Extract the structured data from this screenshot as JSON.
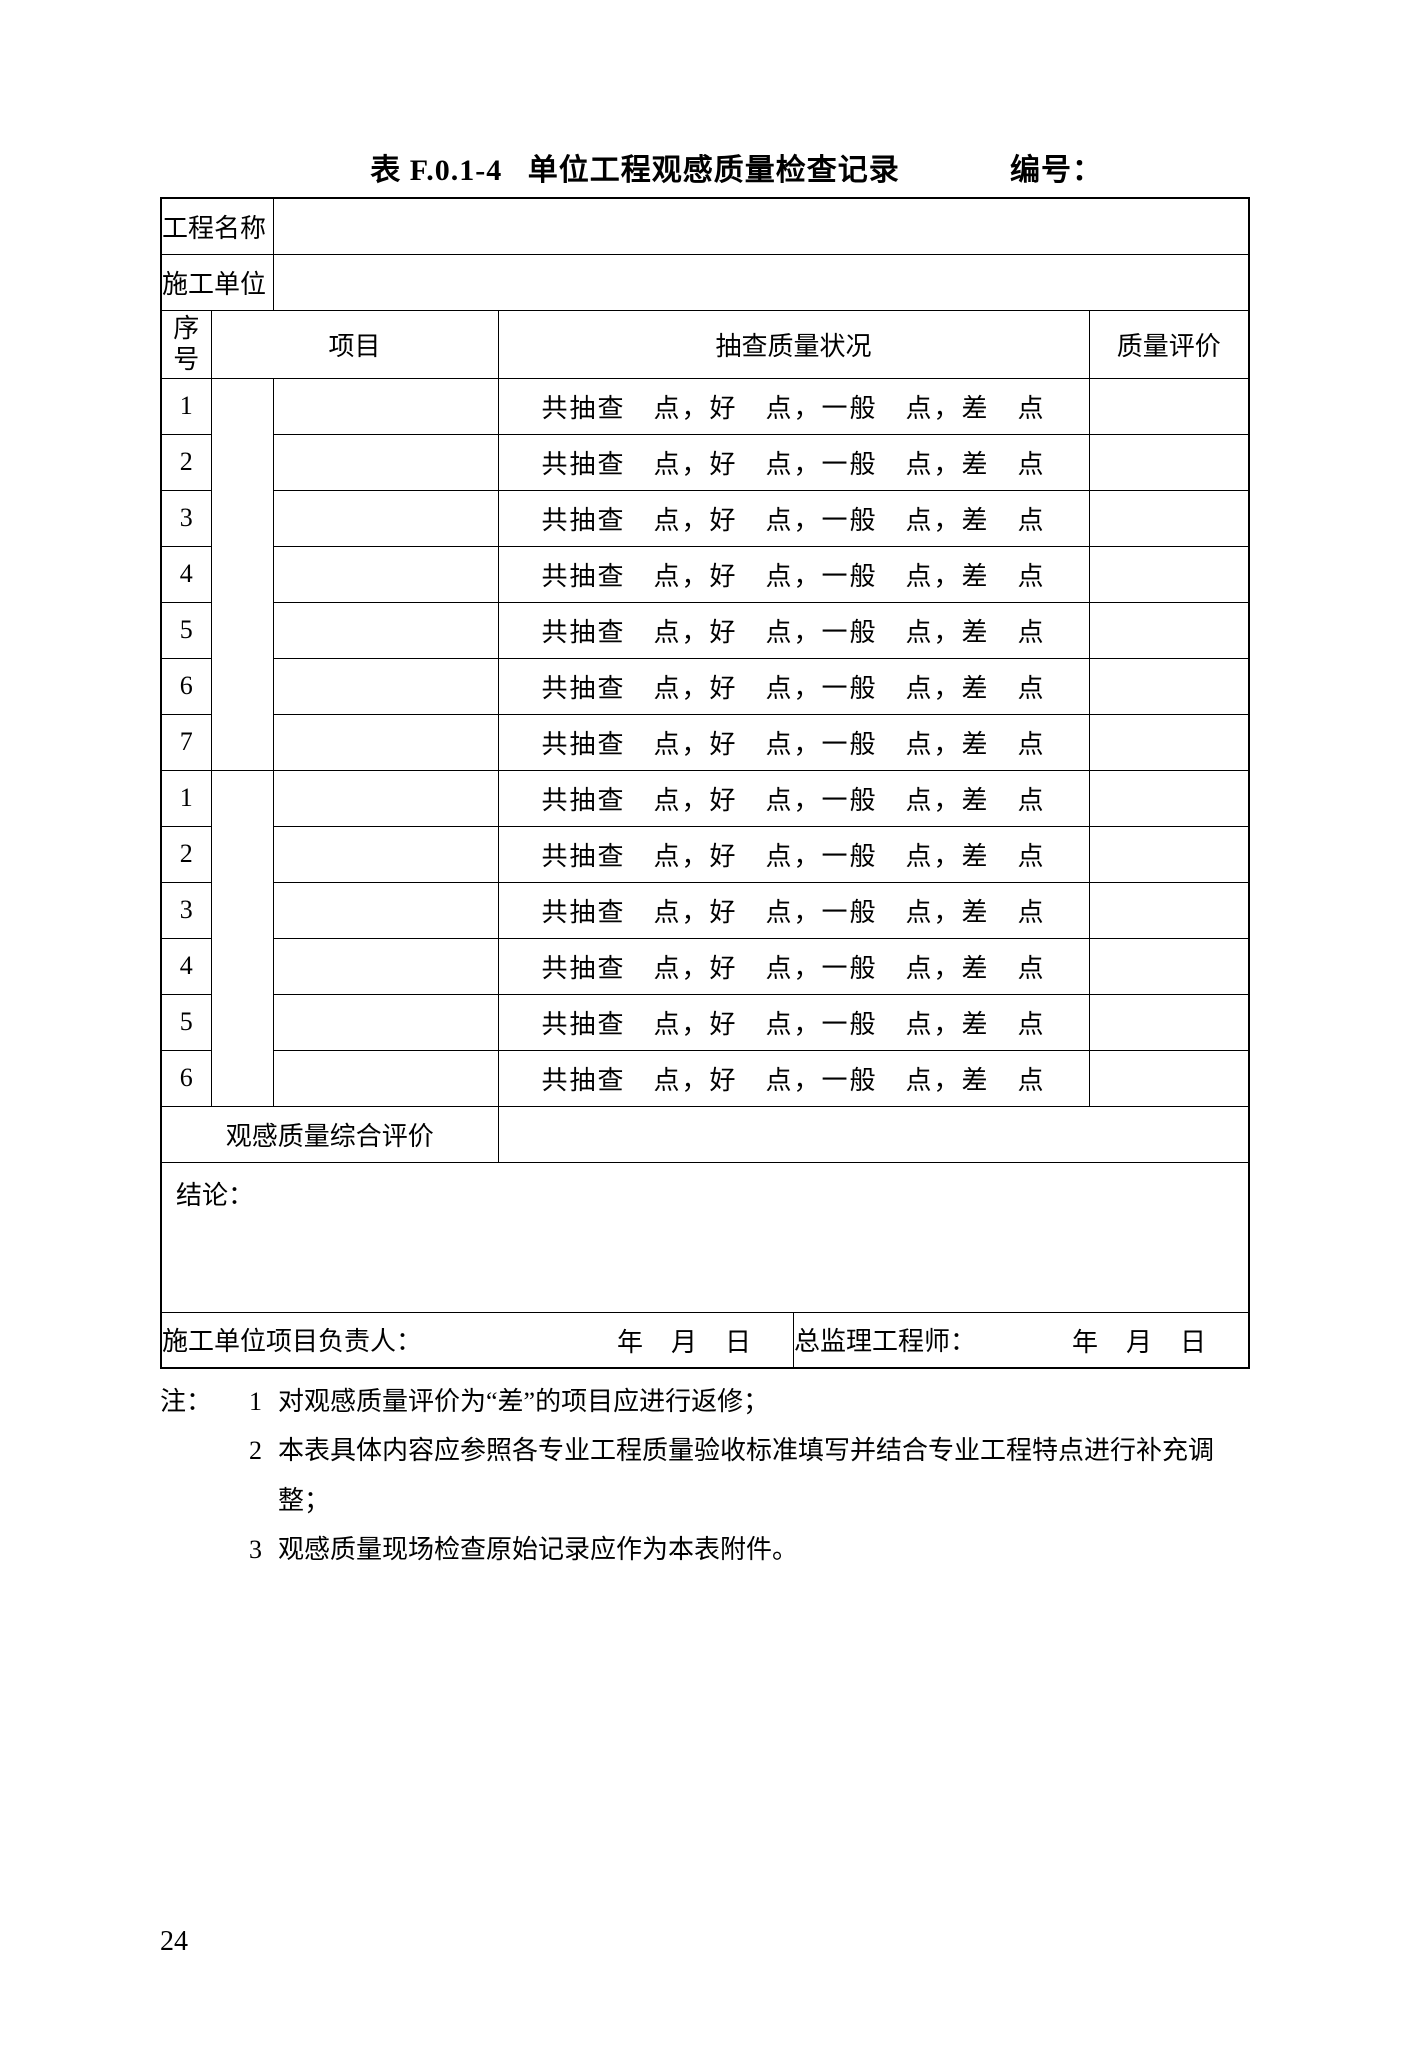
{
  "title": {
    "table_no": "表 F.0.1-4",
    "name": "单位工程观感质量检查记录",
    "numbering_label": "编号："
  },
  "header_rows": {
    "project_name_label": "工程名称",
    "contractor_label": "施工单位",
    "seq_label": "序号",
    "item_label": "项目",
    "sample_label": "抽查质量状况",
    "eval_label": "质量评价"
  },
  "sample_text": "共抽查　点，好　点，一般　点，差　点",
  "rows": [
    {
      "seq": "1"
    },
    {
      "seq": "2"
    },
    {
      "seq": "3"
    },
    {
      "seq": "4"
    },
    {
      "seq": "5"
    },
    {
      "seq": "6"
    },
    {
      "seq": "7"
    },
    {
      "seq": "1"
    },
    {
      "seq": "2"
    },
    {
      "seq": "3"
    },
    {
      "seq": "4"
    },
    {
      "seq": "5"
    },
    {
      "seq": "6"
    }
  ],
  "summary_label": "观感质量综合评价",
  "conclusion_label": "结论：",
  "sign": {
    "contractor_lead": "施工单位项目负责人：",
    "supervisor": "总监理工程师：",
    "date_text": "年月日"
  },
  "notes": {
    "prefix": "注：",
    "items": [
      {
        "n": "1",
        "t": "对观感质量评价为“差”的项目应进行返修；"
      },
      {
        "n": "2",
        "t": "本表具体内容应参照各专业工程质量验收标准填写并结合专业工程特点进行补充调整；"
      },
      {
        "n": "3",
        "t": "观感质量现场检查原始记录应作为本表附件。"
      }
    ]
  },
  "page_number": "24"
}
